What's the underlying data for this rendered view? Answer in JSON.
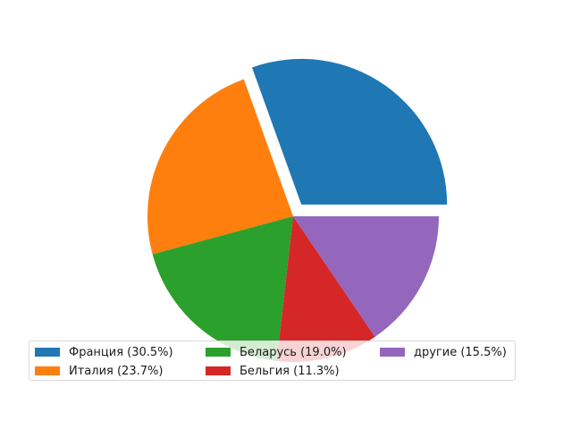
{
  "chart_data": {
    "type": "pie",
    "title": "",
    "slices": [
      {
        "label": "Франция",
        "value": 30.5,
        "color": "#1f77b4",
        "exploded": true
      },
      {
        "label": "Италия",
        "value": 23.7,
        "color": "#ff7f0e",
        "exploded": false
      },
      {
        "label": "Беларусь",
        "value": 19.0,
        "color": "#2ca02c",
        "exploded": false
      },
      {
        "label": "Бельгия",
        "value": 11.3,
        "color": "#d62728",
        "exploded": false
      },
      {
        "label": "другие",
        "value": 15.5,
        "color": "#9467bd",
        "exploded": false
      }
    ],
    "start_angle_deg": 0,
    "direction": "counterclockwise",
    "legend": {
      "placement": "lower-center",
      "columns": 3,
      "entries": [
        "Франция (30.5%)",
        "Италия (23.7%)",
        "Беларусь (19.0%)",
        "Бельгия (11.3%)",
        "другие (15.5%)"
      ]
    }
  }
}
